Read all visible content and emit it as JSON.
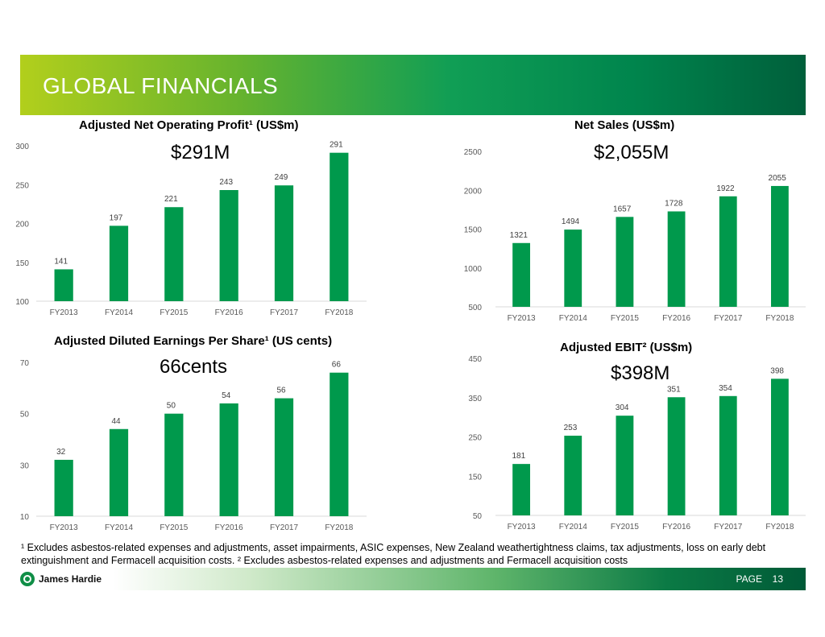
{
  "header": {
    "title": "GLOBAL FINANCIALS"
  },
  "charts": [
    {
      "title": "Adjusted Net Operating Profit¹ (US$m)",
      "headline": "$291M"
    },
    {
      "title": "Net Sales (US$m)",
      "headline": "$2,055M"
    },
    {
      "title": "Adjusted Diluted Earnings Per Share¹ (US cents)",
      "headline": "66cents"
    },
    {
      "title": "Adjusted EBIT² (US$m)",
      "headline": "$398M"
    }
  ],
  "chart_data": [
    {
      "type": "bar",
      "title": "Adjusted Net Operating Profit¹ (US$m)",
      "categories": [
        "FY2013",
        "FY2014",
        "FY2015",
        "FY2016",
        "FY2017",
        "FY2018"
      ],
      "values": [
        141,
        197,
        221,
        243,
        249,
        291
      ],
      "yticks": [
        100,
        150,
        200,
        250,
        300
      ],
      "ylim": [
        100,
        300
      ],
      "color": "#00994c"
    },
    {
      "type": "bar",
      "title": "Net Sales (US$m)",
      "categories": [
        "FY2013",
        "FY2014",
        "FY2015",
        "FY2016",
        "FY2017",
        "FY2018"
      ],
      "values": [
        1321,
        1494,
        1657,
        1728,
        1922,
        2055
      ],
      "yticks": [
        500,
        1000,
        1500,
        2000,
        2500
      ],
      "ylim": [
        500,
        2500
      ],
      "color": "#00994c"
    },
    {
      "type": "bar",
      "title": "Adjusted Diluted Earnings Per Share¹ (US cents)",
      "categories": [
        "FY2013",
        "FY2014",
        "FY2015",
        "FY2016",
        "FY2017",
        "FY2018"
      ],
      "values": [
        32,
        44,
        50,
        54,
        56,
        66
      ],
      "yticks": [
        10,
        30,
        50,
        70
      ],
      "ylim": [
        10,
        70
      ],
      "color": "#00994c"
    },
    {
      "type": "bar",
      "title": "Adjusted EBIT² (US$m)",
      "categories": [
        "FY2013",
        "FY2014",
        "FY2015",
        "FY2016",
        "FY2017",
        "FY2018"
      ],
      "values": [
        181,
        253,
        304,
        351,
        354,
        398
      ],
      "yticks": [
        50,
        150,
        250,
        350,
        450
      ],
      "ylim": [
        50,
        450
      ],
      "color": "#00994c"
    }
  ],
  "footnote": "¹ Excludes asbestos-related expenses and adjustments, asset impairments, ASIC expenses, New Zealand weathertightness claims, tax adjustments, loss on early debt extinguishment and Fermacell acquisition costs. ² Excludes asbestos-related expenses and adjustments and Fermacell acquisition costs",
  "footer": {
    "company": "James Hardie",
    "page_label": "PAGE",
    "page_number": "13"
  }
}
